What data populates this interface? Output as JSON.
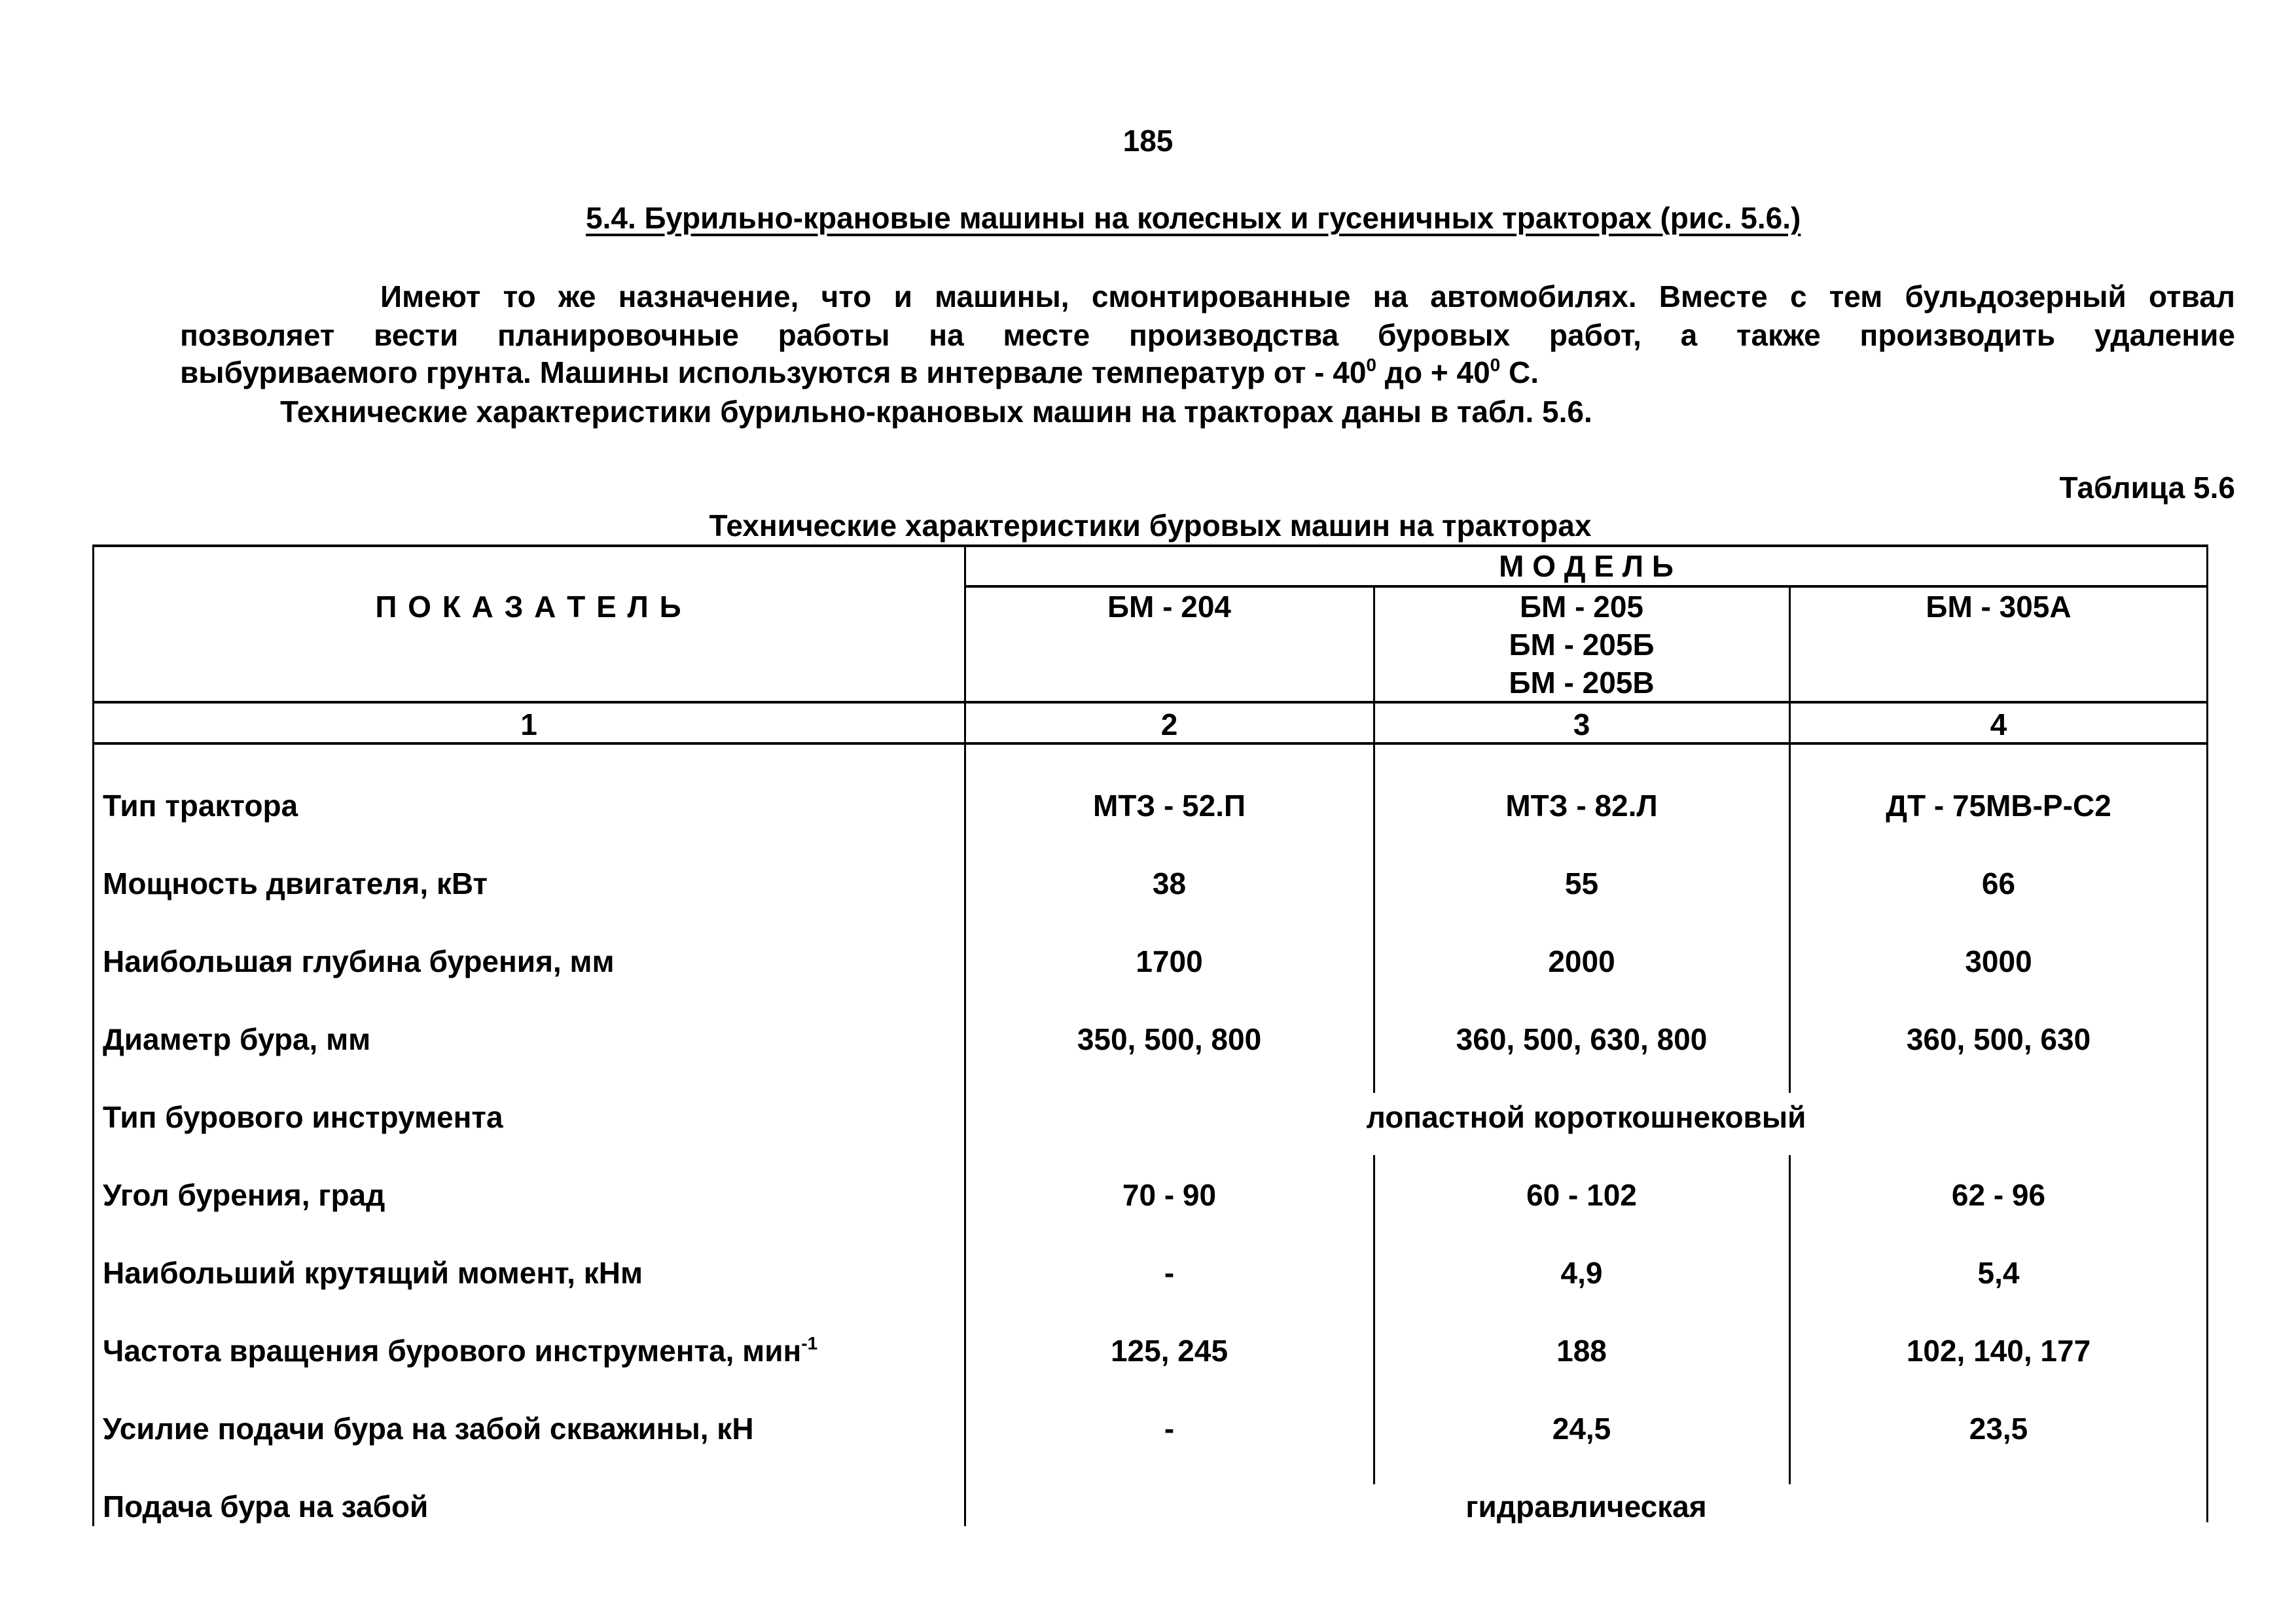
{
  "page_number": "185",
  "section_heading": "5.4. Бурильно-крановые машины на колесных и гусеничных тракторах (рис. 5.6.)",
  "paragraph": {
    "line1": "Имеют то же назначение, что и машины, смонтированные на автомобилях. Вместе с тем бульдозерный отвал",
    "line2": "позволяет вести планировочные работы на месте производства буровых работ, а также производить удаление",
    "line3_a": "выбуриваемого грунта. Машины используются в  интервале температур от  -  40",
    "line3_sup1": "0",
    "line3_b": " до + 40",
    "line3_sup2": "0",
    "line3_c": " С.",
    "line4": "Технические характеристики бурильно-крановых машин на тракторах даны в табл. 5.6."
  },
  "table_label": "Таблица 5.6",
  "table_caption": "Технические  характеристики  буровых машин   на тракторах",
  "table": {
    "header_indicator": "П О К А З А Т Е Л Ь",
    "header_model": "М О Д Е Л Ь",
    "models": [
      [
        "БМ - 204"
      ],
      [
        "БМ - 205",
        "БМ - 205Б",
        "БМ - 205В"
      ],
      [
        "БМ - 305А"
      ]
    ],
    "column_numbers": [
      "1",
      "2",
      "3",
      "4"
    ],
    "rows": [
      {
        "label": "Тип трактора",
        "values": [
          "МТЗ - 52.П",
          "МТЗ - 82.Л",
          "ДТ - 75МВ-Р-С2"
        ]
      },
      {
        "label": "Мощность двигателя,   кВт",
        "values": [
          "38",
          "55",
          "66"
        ]
      },
      {
        "label": "Наибольшая глубина бурения,   мм",
        "values": [
          "1700",
          "2000",
          "3000"
        ]
      },
      {
        "label": "Диаметр бура,   мм",
        "values": [
          "350, 500, 800",
          "360, 500, 630, 800",
          "360, 500, 630"
        ]
      },
      {
        "label": "Тип бурового инструмента",
        "span": "лопастной  короткошнековый"
      },
      {
        "label": "Угол  бурения,   град",
        "values": [
          "70 - 90",
          "60 - 102",
          "62 - 96"
        ]
      },
      {
        "label": "Наибольший крутящий момент,    кНм",
        "values": [
          "-",
          "4,9",
          "5,4"
        ]
      },
      {
        "label": "Частота вращения бурового инструмента,   мин",
        "label_sup": "-1",
        "values": [
          "125, 245",
          "188",
          "102, 140, 177"
        ]
      },
      {
        "label": "Усилие подачи бура на забой скважины,   кН",
        "values": [
          "-",
          "24,5",
          "23,5"
        ]
      },
      {
        "label": "Подача бура на забой",
        "span": "гидравлическая"
      }
    ]
  }
}
